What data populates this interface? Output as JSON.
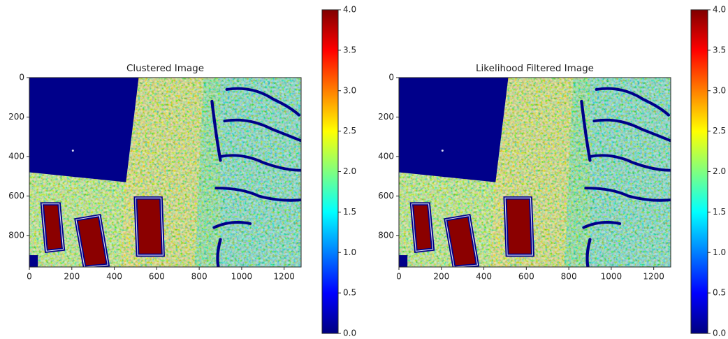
{
  "chart_data": [
    {
      "type": "image",
      "title": "Clustered Image",
      "xlim": [
        0,
        1280
      ],
      "ylim": [
        960,
        0
      ],
      "xticks": [
        0,
        200,
        400,
        600,
        800,
        1000,
        1200
      ],
      "yticks": [
        0,
        200,
        400,
        600,
        800
      ],
      "clim": [
        0,
        4
      ],
      "cticks": [
        {
          "value": 0,
          "label": "0.0"
        },
        0.5,
        {
          "value": 1,
          "label": "1.0"
        },
        1.5,
        {
          "value": 2,
          "label": "2.0"
        },
        2.5,
        {
          "value": 3,
          "label": "3.0"
        },
        3.5,
        {
          "value": 4,
          "label": "4.0"
        }
      ]
    },
    {
      "type": "image",
      "title": "Likelihood Filtered Image",
      "xlim": [
        0,
        1280
      ],
      "ylim": [
        960,
        0
      ],
      "xticks": [
        0,
        200,
        400,
        600,
        800,
        1000,
        1200
      ],
      "yticks": [
        0,
        200,
        400,
        600,
        800
      ],
      "clim": [
        0,
        4
      ],
      "cticks": [
        {
          "value": 0,
          "label": "0.0"
        },
        0.5,
        {
          "value": 1,
          "label": "1.0"
        },
        1.5,
        {
          "value": 2,
          "label": "2.0"
        },
        2.5,
        {
          "value": 3,
          "label": "3.0"
        },
        3.5,
        {
          "value": 4,
          "label": "4.0"
        }
      ]
    }
  ]
}
